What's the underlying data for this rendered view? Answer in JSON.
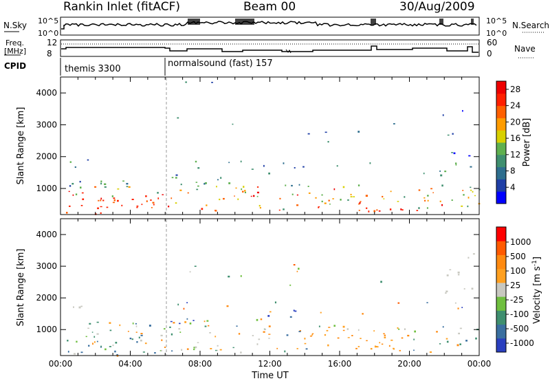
{
  "header": {
    "station": "Rankin Inlet (fitACF)",
    "beam": "Beam 00",
    "date": "30/Aug/2009"
  },
  "top_panels": {
    "nsky_label": "N.Sky",
    "nsky_tick_top": "10^5",
    "nsky_tick_bottom": "10^0",
    "nsearch_label": "N.Search",
    "nsearch_tick_top": "10^5",
    "nsearch_tick_bottom": "10^0",
    "freq_label_1": "Freq.",
    "freq_label_2": "[MHz]",
    "freq_tick_top": "12",
    "freq_tick_bottom": "8",
    "nave_label": "Nave",
    "nave_tick_top": "60",
    "nave_tick_bottom": "0",
    "cpid_label": "CPID",
    "cpid_segments": [
      "themis 3300",
      "normalsound (fast) 157"
    ]
  },
  "colors": {
    "power_scale": [
      "#0000ff",
      "#1f3fa6",
      "#2e6e8e",
      "#3f8f6f",
      "#5fb04f",
      "#d8d000",
      "#ff9c00",
      "#ff6000",
      "#ff2000",
      "#ee0000"
    ],
    "velocity_scale": [
      "#2a3fbf",
      "#3a6fa0",
      "#3f8f6f",
      "#6fbf3f",
      "#c8c8c0",
      "#ffa020",
      "#ff8a10",
      "#ff5a00",
      "#ff0000"
    ]
  },
  "chart_data": [
    {
      "type": "heatmap",
      "title": "",
      "xlabel": "",
      "ylabel": "Slant Range [km]",
      "xlim": [
        0,
        24
      ],
      "ylim": [
        180,
        4500
      ],
      "yticks": [
        "1000",
        "2000",
        "3000",
        "4000"
      ],
      "colorbar": {
        "label": "Power [dB]",
        "ticks": [
          "4",
          "8",
          "12",
          "16",
          "20",
          "24",
          "28"
        ],
        "range": [
          0,
          30
        ]
      }
    },
    {
      "type": "heatmap",
      "title": "",
      "xlabel": "Time UT",
      "ylabel": "Slant Range [km]",
      "xlim": [
        0,
        24
      ],
      "ylim": [
        180,
        4500
      ],
      "xticks": [
        "00:00",
        "04:00",
        "08:00",
        "12:00",
        "16:00",
        "20:00",
        "00:00"
      ],
      "yticks": [
        "1000",
        "2000",
        "3000",
        "4000"
      ],
      "colorbar": {
        "label": "Velocity [m s-1]",
        "label_base": "Velocity [m s",
        "label_sup": "-1",
        "label_end": "]",
        "ticks": [
          "1000",
          "500",
          "100",
          "25",
          "-25",
          "-100",
          "-500",
          "-1000"
        ]
      }
    }
  ]
}
